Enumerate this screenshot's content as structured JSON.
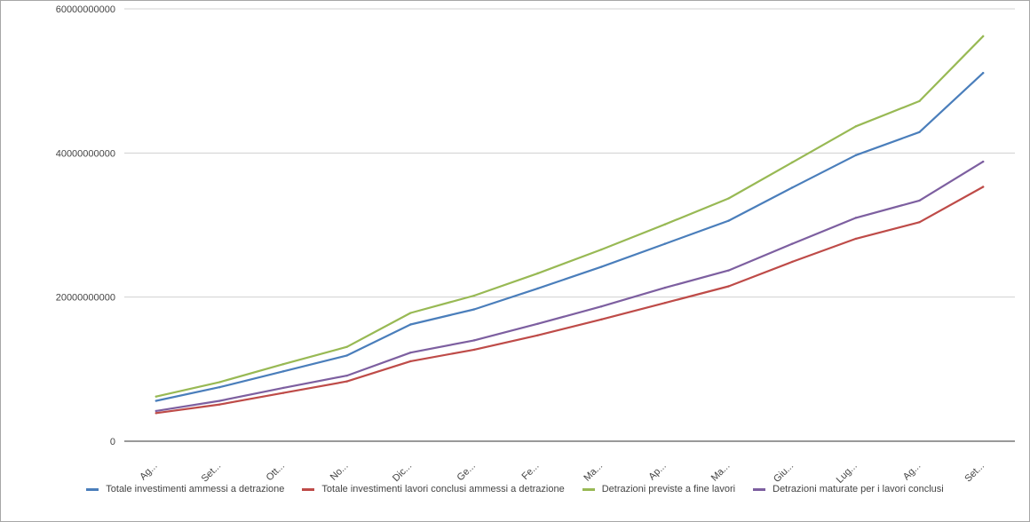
{
  "chart_data": {
    "type": "line",
    "categories": [
      "Ag...",
      "Set...",
      "Ott...",
      "No...",
      "Dic...",
      "Ge...",
      "Fe...",
      "Ma...",
      "Ap...",
      "Ma...",
      "Giu...",
      "Lug...",
      "Ag...",
      "Set..."
    ],
    "series": [
      {
        "name": "Totale investimenti ammessi a detrazione",
        "color": "#4a7ebb",
        "values": [
          5600000000,
          7500000000,
          9700000000,
          11900000000,
          16200000000,
          18300000000,
          21200000000,
          24200000000,
          27400000000,
          30600000000,
          35200000000,
          39700000000,
          42900000000,
          51100000000
        ]
      },
      {
        "name": "Totale investimenti lavori conclusi ammessi a detrazione",
        "color": "#be4b48",
        "values": [
          3900000000,
          5100000000,
          6700000000,
          8300000000,
          11100000000,
          12700000000,
          14700000000,
          16900000000,
          19200000000,
          21500000000,
          24900000000,
          28100000000,
          30400000000,
          35300000000
        ]
      },
      {
        "name": "Detrazioni previste a fine lavori",
        "color": "#98b954",
        "values": [
          6200000000,
          8200000000,
          10700000000,
          13100000000,
          17800000000,
          20200000000,
          23300000000,
          26600000000,
          30100000000,
          33700000000,
          38700000000,
          43700000000,
          47200000000,
          56200000000
        ]
      },
      {
        "name": "Detrazioni maturate per i lavori conclusi",
        "color": "#7d5fa0",
        "values": [
          4200000000,
          5600000000,
          7400000000,
          9100000000,
          12300000000,
          14000000000,
          16300000000,
          18700000000,
          21300000000,
          23700000000,
          27400000000,
          31000000000,
          33400000000,
          38800000000
        ]
      }
    ],
    "yticks": [
      "60000000000",
      "40000000000",
      "20000000000",
      "0"
    ],
    "ytick_values": [
      60000000000,
      40000000000,
      20000000000,
      0
    ],
    "ylim": [
      0,
      60000000000
    ],
    "grid": "horizontal",
    "legend_position": "bottom"
  }
}
